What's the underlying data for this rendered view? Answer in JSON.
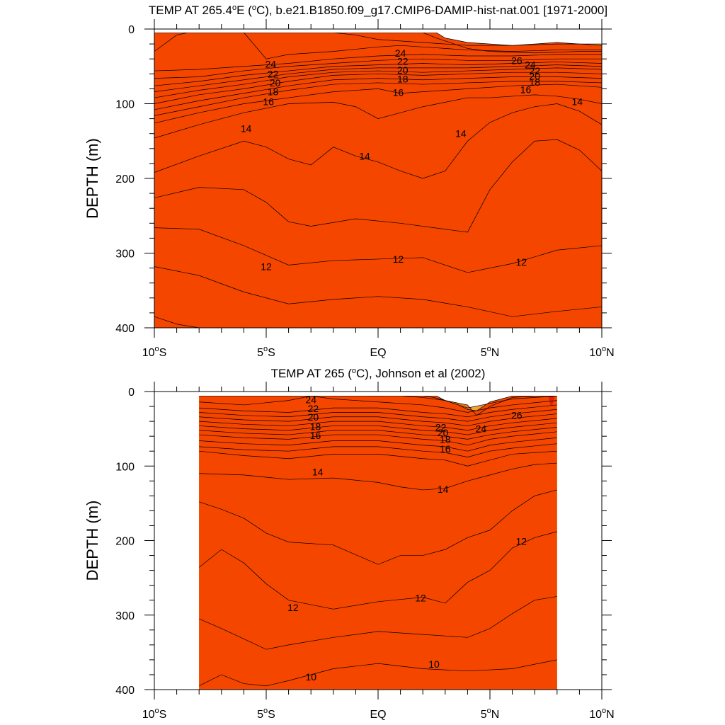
{
  "chart_data": [
    {
      "type": "contour",
      "title": "TEMP AT 265.4°E (°C), b.e21.B1850.f09_g17.CMIP6-DAMIP-hist-nat.001 [1971-2000]",
      "title_parts": [
        "TEMP AT 265.4",
        "o",
        "E (",
        "o",
        "C), b.e21.B1850.f09_g17.CMIP6-DAMIP-hist-nat.001 [1971-2000]"
      ],
      "ylabel": "DEPTH (m)",
      "xlim": [
        -10,
        10
      ],
      "ylim": [
        400,
        0
      ],
      "data_x_range": [
        -10,
        10
      ],
      "y_ticks": [
        "0",
        "100",
        "200",
        "300",
        "400"
      ],
      "x_ticks": [
        {
          "value": -10,
          "num": "10",
          "hemi": "S"
        },
        {
          "value": -5,
          "num": "5",
          "hemi": "S"
        },
        {
          "value": 0,
          "num": "EQ",
          "hemi": ""
        },
        {
          "value": 5,
          "num": "5",
          "hemi": "N"
        },
        {
          "value": 10,
          "num": "10",
          "hemi": "N"
        }
      ],
      "contour_labels": [
        {
          "text": "24",
          "lat": -4.8,
          "depth": 47
        },
        {
          "text": "22",
          "lat": -4.7,
          "depth": 60
        },
        {
          "text": "20",
          "lat": -4.6,
          "depth": 72
        },
        {
          "text": "18",
          "lat": -4.7,
          "depth": 84
        },
        {
          "text": "16",
          "lat": -4.9,
          "depth": 97
        },
        {
          "text": "14",
          "lat": -5.9,
          "depth": 133
        },
        {
          "text": "14",
          "lat": -0.6,
          "depth": 170
        },
        {
          "text": "24",
          "lat": 1.0,
          "depth": 32
        },
        {
          "text": "22",
          "lat": 1.1,
          "depth": 43
        },
        {
          "text": "20",
          "lat": 1.1,
          "depth": 55
        },
        {
          "text": "18",
          "lat": 1.1,
          "depth": 67
        },
        {
          "text": "16",
          "lat": 0.9,
          "depth": 85
        },
        {
          "text": "26",
          "lat": 6.2,
          "depth": 42
        },
        {
          "text": "24",
          "lat": 6.8,
          "depth": 48
        },
        {
          "text": "22",
          "lat": 7.0,
          "depth": 56
        },
        {
          "text": "20",
          "lat": 7.0,
          "depth": 63
        },
        {
          "text": "18",
          "lat": 7.0,
          "depth": 71
        },
        {
          "text": "16",
          "lat": 6.6,
          "depth": 81
        },
        {
          "text": "14",
          "lat": 8.9,
          "depth": 97
        },
        {
          "text": "14",
          "lat": 3.7,
          "depth": 140
        },
        {
          "text": "12",
          "lat": -5.0,
          "depth": 318
        },
        {
          "text": "12",
          "lat": 0.9,
          "depth": 308
        },
        {
          "text": "12",
          "lat": 6.4,
          "depth": 312
        }
      ]
    },
    {
      "type": "contour",
      "title": "TEMP AT 265 (°C), Johnson et al (2002)",
      "title_parts": [
        "TEMP AT 265 (",
        "o",
        "C), Johnson et al (2002)"
      ],
      "ylabel": "DEPTH (m)",
      "xlim": [
        -10,
        10
      ],
      "ylim": [
        400,
        0
      ],
      "data_x_range": [
        -8,
        8
      ],
      "y_ticks": [
        "0",
        "100",
        "200",
        "300",
        "400"
      ],
      "x_ticks": [
        {
          "value": -10,
          "num": "10",
          "hemi": "S"
        },
        {
          "value": -5,
          "num": "5",
          "hemi": "S"
        },
        {
          "value": 0,
          "num": "EQ",
          "hemi": ""
        },
        {
          "value": 5,
          "num": "5",
          "hemi": "N"
        },
        {
          "value": 10,
          "num": "10",
          "hemi": "N"
        }
      ],
      "contour_labels": [
        {
          "text": "24",
          "lat": -3.0,
          "depth": 11
        },
        {
          "text": "22",
          "lat": -2.9,
          "depth": 23
        },
        {
          "text": "20",
          "lat": -2.9,
          "depth": 34
        },
        {
          "text": "18",
          "lat": -2.8,
          "depth": 47
        },
        {
          "text": "16",
          "lat": -2.8,
          "depth": 59
        },
        {
          "text": "14",
          "lat": -2.7,
          "depth": 108
        },
        {
          "text": "22",
          "lat": 2.8,
          "depth": 48
        },
        {
          "text": "20",
          "lat": 2.9,
          "depth": 55
        },
        {
          "text": "18",
          "lat": 3.0,
          "depth": 64
        },
        {
          "text": "16",
          "lat": 3.0,
          "depth": 77
        },
        {
          "text": "24",
          "lat": 4.6,
          "depth": 50
        },
        {
          "text": "26",
          "lat": 6.2,
          "depth": 32
        },
        {
          "text": "14",
          "lat": 2.9,
          "depth": 131
        },
        {
          "text": "12",
          "lat": 6.4,
          "depth": 201
        },
        {
          "text": "12",
          "lat": -3.8,
          "depth": 290
        },
        {
          "text": "12",
          "lat": 1.9,
          "depth": 277
        },
        {
          "text": "10",
          "lat": -3.0,
          "depth": 383
        },
        {
          "text": "10",
          "lat": 2.5,
          "depth": 366
        }
      ]
    }
  ],
  "colors": {
    "t_lt10": "#1e64f0",
    "t_10_11": "#1e78f5",
    "t_11_12": "#1e96f0",
    "t_12_13": "#1eb4f5",
    "t_13_14": "#19d2f5",
    "t_14_15": "#37e6f5",
    "t_15_16": "#00ffff",
    "t_16_17": "#19f0c8",
    "t_17_18": "#14f596",
    "t_18_19": "#14e632",
    "t_19_20": "#a0f000",
    "t_20_21": "#e6ff32",
    "t_21_22": "#ffff64",
    "t_22_23": "#ffe650",
    "t_23_24": "#ffc83c",
    "t_24_25": "#ffb43c",
    "t_25_26": "#f5a032",
    "t_26_27": "#f07814",
    "t_27_28": "#f54600",
    "t_gt28": "#e61e0a",
    "contour_line": "#000000"
  }
}
